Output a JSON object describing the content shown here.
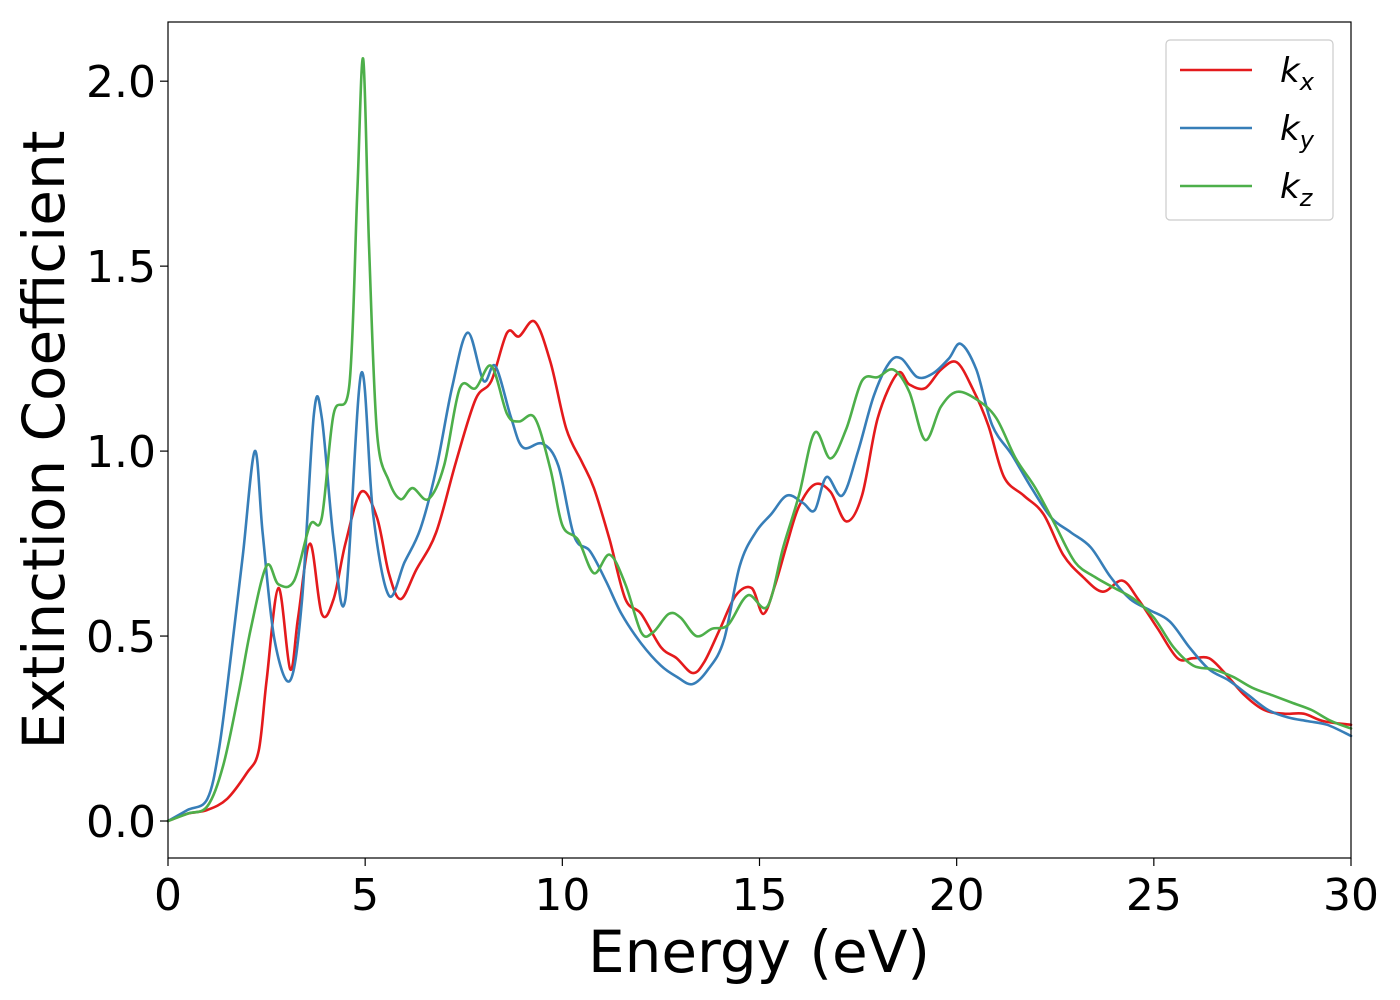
{
  "chart_data": {
    "type": "line",
    "xlabel": "Energy (eV)",
    "ylabel": "Extinction Coefficient",
    "xlim": [
      0,
      30
    ],
    "ylim": [
      -0.1,
      2.16
    ],
    "xticks": [
      0,
      5,
      10,
      15,
      20,
      25,
      30
    ],
    "xtick_labels": [
      "0",
      "5",
      "10",
      "15",
      "20",
      "25",
      "30"
    ],
    "yticks": [
      0.0,
      0.5,
      1.0,
      1.5,
      2.0
    ],
    "ytick_labels": [
      "0.0",
      "0.5",
      "1.0",
      "1.5",
      "2.0"
    ],
    "grid": false,
    "legend_position": "top-right",
    "series": [
      {
        "name": "kx",
        "label_base": "k",
        "label_sub": "x",
        "color": "#e41a1c",
        "x": [
          0,
          0.5,
          1.0,
          1.5,
          2.0,
          2.3,
          2.5,
          2.8,
          3.1,
          3.3,
          3.6,
          3.9,
          4.2,
          4.5,
          4.9,
          5.3,
          5.6,
          5.9,
          6.3,
          6.8,
          7.3,
          7.8,
          8.2,
          8.6,
          8.9,
          9.3,
          9.7,
          10.1,
          10.5,
          10.8,
          11.2,
          11.6,
          12.0,
          12.5,
          12.9,
          13.3,
          13.6,
          14.0,
          14.4,
          14.8,
          15.1,
          15.4,
          15.7,
          16.0,
          16.4,
          16.8,
          17.2,
          17.6,
          18.0,
          18.5,
          18.8,
          19.2,
          19.6,
          20.0,
          20.4,
          20.8,
          21.2,
          21.7,
          22.2,
          22.7,
          23.2,
          23.7,
          24.2,
          24.6,
          25.1,
          25.6,
          26.0,
          26.4,
          26.8,
          27.3,
          27.8,
          28.3,
          28.8,
          29.3,
          30.0
        ],
        "y": [
          0.0,
          0.02,
          0.03,
          0.06,
          0.13,
          0.19,
          0.38,
          0.63,
          0.41,
          0.55,
          0.75,
          0.56,
          0.6,
          0.75,
          0.89,
          0.82,
          0.67,
          0.6,
          0.68,
          0.78,
          0.97,
          1.14,
          1.19,
          1.32,
          1.31,
          1.35,
          1.24,
          1.06,
          0.97,
          0.9,
          0.76,
          0.6,
          0.56,
          0.47,
          0.44,
          0.4,
          0.43,
          0.52,
          0.61,
          0.63,
          0.56,
          0.64,
          0.75,
          0.85,
          0.91,
          0.89,
          0.81,
          0.88,
          1.09,
          1.21,
          1.18,
          1.17,
          1.22,
          1.24,
          1.17,
          1.07,
          0.93,
          0.88,
          0.83,
          0.72,
          0.66,
          0.62,
          0.65,
          0.6,
          0.52,
          0.44,
          0.44,
          0.44,
          0.4,
          0.34,
          0.3,
          0.29,
          0.29,
          0.27,
          0.26
        ]
      },
      {
        "name": "ky",
        "label_base": "k",
        "label_sub": "y",
        "color": "#377eb8",
        "x": [
          0,
          0.5,
          1.0,
          1.3,
          1.6,
          1.9,
          2.2,
          2.4,
          2.7,
          3.1,
          3.4,
          3.7,
          3.9,
          4.2,
          4.5,
          4.9,
          5.2,
          5.6,
          6.0,
          6.4,
          6.8,
          7.2,
          7.6,
          8.0,
          8.3,
          8.7,
          9.0,
          9.5,
          9.9,
          10.3,
          10.7,
          11.1,
          11.5,
          12.0,
          12.5,
          12.9,
          13.3,
          13.7,
          14.1,
          14.5,
          14.9,
          15.3,
          15.7,
          16.1,
          16.4,
          16.7,
          17.1,
          17.5,
          17.9,
          18.3,
          18.6,
          19.0,
          19.4,
          19.8,
          20.1,
          20.5,
          20.9,
          21.4,
          21.9,
          22.4,
          22.9,
          23.4,
          23.9,
          24.4,
          24.9,
          25.4,
          25.9,
          26.4,
          26.9,
          27.4,
          27.9,
          28.4,
          28.9,
          29.4,
          30.0
        ],
        "y": [
          0.0,
          0.03,
          0.06,
          0.2,
          0.45,
          0.72,
          1.0,
          0.78,
          0.49,
          0.38,
          0.6,
          1.1,
          1.09,
          0.76,
          0.6,
          1.21,
          0.83,
          0.61,
          0.7,
          0.79,
          0.95,
          1.17,
          1.32,
          1.19,
          1.23,
          1.09,
          1.01,
          1.02,
          0.96,
          0.77,
          0.73,
          0.65,
          0.56,
          0.48,
          0.42,
          0.39,
          0.37,
          0.41,
          0.49,
          0.69,
          0.78,
          0.83,
          0.88,
          0.86,
          0.84,
          0.93,
          0.88,
          1.0,
          1.15,
          1.24,
          1.25,
          1.2,
          1.21,
          1.25,
          1.29,
          1.22,
          1.07,
          0.99,
          0.9,
          0.82,
          0.78,
          0.74,
          0.66,
          0.6,
          0.57,
          0.54,
          0.47,
          0.41,
          0.38,
          0.34,
          0.3,
          0.28,
          0.27,
          0.26,
          0.23
        ]
      },
      {
        "name": "kz",
        "label_base": "k",
        "label_sub": "z",
        "color": "#4daf4a",
        "x": [
          0,
          0.5,
          1.0,
          1.4,
          1.8,
          2.1,
          2.5,
          2.8,
          3.2,
          3.6,
          3.9,
          4.2,
          4.6,
          4.8,
          4.95,
          5.1,
          5.3,
          5.6,
          5.9,
          6.2,
          6.6,
          7.0,
          7.4,
          7.8,
          8.2,
          8.6,
          8.9,
          9.3,
          9.7,
          10.0,
          10.4,
          10.8,
          11.2,
          11.6,
          12.0,
          12.3,
          12.7,
          13.0,
          13.4,
          13.8,
          14.2,
          14.7,
          15.2,
          15.6,
          16.0,
          16.4,
          16.8,
          17.2,
          17.6,
          18.0,
          18.4,
          18.8,
          19.2,
          19.6,
          20.0,
          20.5,
          21.0,
          21.5,
          22.0,
          22.5,
          23.0,
          23.5,
          24.0,
          24.5,
          25.0,
          25.5,
          26.0,
          26.5,
          27.0,
          27.5,
          28.0,
          28.5,
          29.0,
          29.5,
          30.0
        ],
        "y": [
          0.0,
          0.02,
          0.04,
          0.15,
          0.35,
          0.52,
          0.69,
          0.64,
          0.65,
          0.8,
          0.82,
          1.1,
          1.18,
          1.7,
          2.06,
          1.55,
          1.05,
          0.92,
          0.87,
          0.9,
          0.87,
          0.96,
          1.17,
          1.17,
          1.23,
          1.1,
          1.08,
          1.09,
          0.95,
          0.8,
          0.76,
          0.67,
          0.72,
          0.64,
          0.51,
          0.51,
          0.56,
          0.55,
          0.5,
          0.52,
          0.53,
          0.61,
          0.58,
          0.74,
          0.88,
          1.05,
          0.98,
          1.06,
          1.19,
          1.2,
          1.22,
          1.16,
          1.03,
          1.12,
          1.16,
          1.14,
          1.09,
          0.98,
          0.9,
          0.8,
          0.7,
          0.66,
          0.63,
          0.6,
          0.55,
          0.47,
          0.42,
          0.41,
          0.39,
          0.36,
          0.34,
          0.32,
          0.3,
          0.27,
          0.25
        ]
      }
    ]
  }
}
